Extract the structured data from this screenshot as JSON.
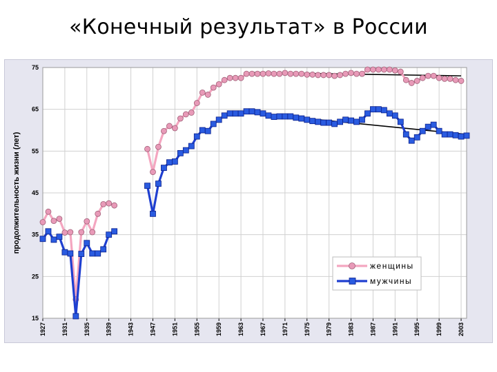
{
  "slide": {
    "title": "«Конечный результат» в России"
  },
  "chart_data": {
    "type": "line",
    "ylabel": "продолжительность жизни (лет)",
    "ylim": [
      15,
      75
    ],
    "yticks": [
      15,
      25,
      35,
      45,
      55,
      65,
      75
    ],
    "xlim": [
      1927,
      2004
    ],
    "xticks": [
      1927,
      1931,
      1935,
      1939,
      1943,
      1947,
      1951,
      1955,
      1959,
      1963,
      1967,
      1971,
      1975,
      1979,
      1983,
      1987,
      1991,
      1995,
      1999,
      2003
    ],
    "grid": true,
    "legend_position": "bottom-right",
    "colors": {
      "women": "#f4a6c0",
      "women_marker": "#e89ab8",
      "men": "#1f3fd0",
      "men_marker": "#2a5be0",
      "trend": "#000000",
      "plot_bg": "#ffffff",
      "frame_bg": "#e6e6f0"
    },
    "series": [
      {
        "name": "женщины",
        "segments": [
          [
            [
              1927,
              38
            ],
            [
              1928,
              40.5
            ],
            [
              1929,
              38.3
            ],
            [
              1930,
              38.8
            ],
            [
              1931,
              35.5
            ],
            [
              1932,
              35.6
            ],
            [
              1933,
              19.5
            ],
            [
              1934,
              35.6
            ],
            [
              1935,
              38.2
            ],
            [
              1936,
              35.6
            ],
            [
              1937,
              40.0
            ],
            [
              1938,
              42.3
            ],
            [
              1939,
              42.5
            ],
            [
              1940,
              42.0
            ]
          ],
          [
            [
              1946,
              55.5
            ],
            [
              1947,
              50.0
            ],
            [
              1948,
              56.0
            ],
            [
              1949,
              59.8
            ],
            [
              1950,
              61.0
            ],
            [
              1951,
              60.5
            ],
            [
              1952,
              62.8
            ],
            [
              1953,
              63.8
            ],
            [
              1954,
              64.2
            ],
            [
              1955,
              66.5
            ],
            [
              1956,
              69.0
            ],
            [
              1957,
              68.5
            ],
            [
              1958,
              70.2
            ],
            [
              1959,
              71.0
            ],
            [
              1960,
              72.0
            ],
            [
              1961,
              72.5
            ],
            [
              1962,
              72.5
            ],
            [
              1963,
              72.5
            ],
            [
              1964,
              73.5
            ],
            [
              1965,
              73.5
            ],
            [
              1966,
              73.5
            ],
            [
              1967,
              73.5
            ],
            [
              1968,
              73.6
            ],
            [
              1969,
              73.5
            ],
            [
              1970,
              73.5
            ],
            [
              1971,
              73.7
            ],
            [
              1972,
              73.5
            ],
            [
              1973,
              73.5
            ],
            [
              1974,
              73.5
            ],
            [
              1975,
              73.3
            ],
            [
              1976,
              73.3
            ],
            [
              1977,
              73.2
            ],
            [
              1978,
              73.2
            ],
            [
              1979,
              73.2
            ],
            [
              1980,
              73.0
            ],
            [
              1981,
              73.2
            ],
            [
              1982,
              73.5
            ],
            [
              1983,
              73.7
            ],
            [
              1984,
              73.5
            ],
            [
              1985,
              73.5
            ],
            [
              1986,
              74.5
            ],
            [
              1987,
              74.5
            ],
            [
              1988,
              74.5
            ],
            [
              1989,
              74.5
            ],
            [
              1990,
              74.5
            ],
            [
              1991,
              74.3
            ],
            [
              1992,
              74.0
            ],
            [
              1993,
              72.0
            ],
            [
              1994,
              71.3
            ],
            [
              1995,
              71.8
            ],
            [
              1996,
              72.5
            ],
            [
              1997,
              73.0
            ],
            [
              1998,
              73.0
            ],
            [
              1999,
              72.5
            ],
            [
              2000,
              72.3
            ],
            [
              2001,
              72.3
            ],
            [
              2002,
              72.0
            ],
            [
              2003,
              71.8
            ]
          ]
        ]
      },
      {
        "name": "мужчины",
        "segments": [
          [
            [
              1927,
              34.0
            ],
            [
              1928,
              35.8
            ],
            [
              1929,
              33.8
            ],
            [
              1930,
              34.5
            ],
            [
              1931,
              30.8
            ],
            [
              1932,
              30.5
            ],
            [
              1933,
              15.5
            ],
            [
              1934,
              30.4
            ],
            [
              1935,
              33.0
            ],
            [
              1936,
              30.5
            ],
            [
              1937,
              30.5
            ],
            [
              1938,
              31.5
            ],
            [
              1939,
              35.0
            ],
            [
              1940,
              35.8
            ]
          ],
          [
            [
              1946,
              46.7
            ],
            [
              1947,
              40.0
            ],
            [
              1948,
              47.2
            ],
            [
              1949,
              51.0
            ],
            [
              1950,
              52.3
            ],
            [
              1951,
              52.5
            ],
            [
              1952,
              54.5
            ],
            [
              1953,
              55.2
            ],
            [
              1954,
              56.2
            ],
            [
              1955,
              58.5
            ],
            [
              1956,
              60.0
            ],
            [
              1957,
              59.8
            ],
            [
              1958,
              61.5
            ],
            [
              1959,
              62.5
            ],
            [
              1960,
              63.5
            ],
            [
              1961,
              64.0
            ],
            [
              1962,
              64.0
            ],
            [
              1963,
              64.0
            ],
            [
              1964,
              64.5
            ],
            [
              1965,
              64.5
            ],
            [
              1966,
              64.3
            ],
            [
              1967,
              64.0
            ],
            [
              1968,
              63.5
            ],
            [
              1969,
              63.2
            ],
            [
              1970,
              63.3
            ],
            [
              1971,
              63.3
            ],
            [
              1972,
              63.3
            ],
            [
              1973,
              63.0
            ],
            [
              1974,
              62.8
            ],
            [
              1975,
              62.5
            ],
            [
              1976,
              62.2
            ],
            [
              1977,
              62.0
            ],
            [
              1978,
              61.8
            ],
            [
              1979,
              61.8
            ],
            [
              1980,
              61.5
            ],
            [
              1981,
              62.0
            ],
            [
              1982,
              62.5
            ],
            [
              1983,
              62.3
            ],
            [
              1984,
              62.0
            ],
            [
              1985,
              62.5
            ],
            [
              1986,
              64.0
            ],
            [
              1987,
              65.0
            ],
            [
              1988,
              65.0
            ],
            [
              1989,
              64.8
            ],
            [
              1990,
              64.0
            ],
            [
              1991,
              63.5
            ],
            [
              1992,
              62.0
            ],
            [
              1993,
              59.0
            ],
            [
              1994,
              57.5
            ],
            [
              1995,
              58.3
            ],
            [
              1996,
              59.8
            ],
            [
              1997,
              60.8
            ],
            [
              1998,
              61.3
            ],
            [
              1999,
              59.8
            ],
            [
              2000,
              59.0
            ],
            [
              2001,
              59.0
            ],
            [
              2002,
              58.8
            ],
            [
              2003,
              58.5
            ],
            [
              2004,
              58.7
            ]
          ]
        ]
      }
    ],
    "trend_lines": [
      {
        "series": "женщины",
        "points": [
          [
            1965,
            73.8
          ],
          [
            2003,
            73.0
          ]
        ]
      },
      {
        "series": "мужчины",
        "points": [
          [
            1962,
            64.5
          ],
          [
            2004,
            59.0
          ]
        ]
      }
    ]
  }
}
